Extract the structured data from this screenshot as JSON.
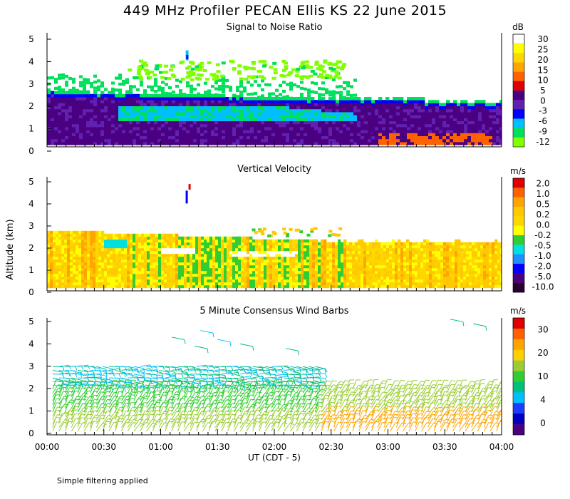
{
  "title": "449 MHz Profiler PECAN Ellis KS 22 June 2015",
  "footnote": "Simple filtering applied",
  "colors": {
    "axis": "#000000",
    "background": "#ffffff"
  },
  "chart_data": [
    {
      "type": "heatmap",
      "title": "Signal to Noise Ratio",
      "xlabel": "UT  (CDT - 5)",
      "ylabel": "Altitude (km)",
      "x_ticks": [
        "00:00",
        "00:30",
        "01:00",
        "01:30",
        "02:00",
        "02:30",
        "03:00",
        "03:30",
        "04:00"
      ],
      "xlim_hours": [
        0,
        4
      ],
      "ylim_km": [
        0,
        5
      ],
      "y_ticks": [
        "0",
        "1",
        "2",
        "3",
        "4",
        "5"
      ],
      "colorbar": {
        "unit": "dB",
        "ticks": [
          "30",
          "25",
          "20",
          "15",
          "10",
          "5",
          "0",
          "-3",
          "-6",
          "-9",
          "-12"
        ],
        "colors": [
          "#ffffff",
          "#ffff00",
          "#ffd700",
          "#ffa500",
          "#ff6000",
          "#e00000",
          "#4b0082",
          "#6020b0",
          "#0000ff",
          "#00bfff",
          "#00e05a",
          "#80ff00"
        ]
      },
      "regions": [
        {
          "label": "scattered weak echoes",
          "t": [
            0.7,
            2.5
          ],
          "z": [
            3.2,
            4.1
          ],
          "value_db": -12
        },
        {
          "label": "isolated echo",
          "t": [
            1.2,
            1.25
          ],
          "z": [
            4.0,
            4.8
          ],
          "value_db": -9
        },
        {
          "label": "strong layer",
          "t": [
            0,
            4.0
          ],
          "z": [
            0.3,
            2.6
          ],
          "value_db": 5
        },
        {
          "label": "elevated enhanced band",
          "t": [
            0.6,
            2.6
          ],
          "z": [
            1.3,
            1.9
          ],
          "value_db": -6
        },
        {
          "label": "near-surface peaks",
          "t": [
            3.0,
            3.9
          ],
          "z": [
            0.3,
            0.7
          ],
          "value_db": 10
        }
      ]
    },
    {
      "type": "heatmap",
      "title": "Vertical Velocity",
      "xlabel": "UT  (CDT - 5)",
      "ylabel": "Altitude (km)",
      "x_ticks": [
        "00:00",
        "00:30",
        "01:00",
        "01:30",
        "02:00",
        "02:30",
        "03:00",
        "03:30",
        "04:00"
      ],
      "xlim_hours": [
        0,
        4
      ],
      "ylim_km": [
        0,
        5
      ],
      "y_ticks": [
        "0",
        "1",
        "2",
        "3",
        "4",
        "5"
      ],
      "colorbar": {
        "unit": "m/s",
        "ticks": [
          "2.0",
          "1.0",
          "0.5",
          "0.2",
          "0.0",
          "-0.2",
          "-0.5",
          "-1.0",
          "-2.0",
          "-5.0",
          "-10.0"
        ],
        "colors": [
          "#e00000",
          "#ff6000",
          "#ffa500",
          "#ffc800",
          "#ffd700",
          "#ffff00",
          "#32cd32",
          "#00e0e0",
          "#1e90ff",
          "#0000ff",
          "#4b0082",
          "#2a0033"
        ]
      },
      "regions": [
        {
          "label": "mostly weak upward motion",
          "t": [
            0,
            4.0
          ],
          "z": [
            0.3,
            2.8
          ],
          "value_ms": 0.2
        },
        {
          "label": "downdraft patches",
          "t": [
            0.6,
            2.6
          ],
          "z": [
            0.5,
            2.3
          ],
          "value_ms": -0.2
        },
        {
          "label": "isolated plume",
          "t": [
            1.2,
            1.25
          ],
          "z": [
            3.6,
            4.8
          ],
          "value_ms": -2.0
        }
      ]
    },
    {
      "type": "scatter",
      "subtype": "wind-barbs",
      "title": "5 Minute Consensus Wind Barbs",
      "xlabel": "UT  (CDT - 5)",
      "ylabel": "Altitude (km)",
      "x_ticks": [
        "00:00",
        "00:30",
        "01:00",
        "01:30",
        "02:00",
        "02:30",
        "03:00",
        "03:30",
        "04:00"
      ],
      "xlim_hours": [
        0,
        4
      ],
      "ylim_km": [
        0,
        5
      ],
      "y_ticks": [
        "0",
        "1",
        "2",
        "3",
        "4",
        "5"
      ],
      "colorbar": {
        "unit": "m/s",
        "ticks": [
          "30",
          "20",
          "10",
          "4",
          "0"
        ],
        "colors": [
          "#e00000",
          "#ff6000",
          "#ffa500",
          "#ffd000",
          "#9acd32",
          "#32cd32",
          "#00c080",
          "#00bfff",
          "#1e3cff",
          "#0000c0",
          "#4b0082"
        ]
      },
      "summary": [
        {
          "t": [
            0.0,
            2.4
          ],
          "z": [
            0.0,
            3.0
          ],
          "speed_ms": 12
        },
        {
          "t": [
            2.4,
            4.0
          ],
          "z": [
            0.0,
            2.0
          ],
          "speed_ms": 18
        },
        {
          "t": [
            1.1,
            2.3
          ],
          "z": [
            3.5,
            4.8
          ],
          "speed_ms": 6
        }
      ]
    }
  ]
}
